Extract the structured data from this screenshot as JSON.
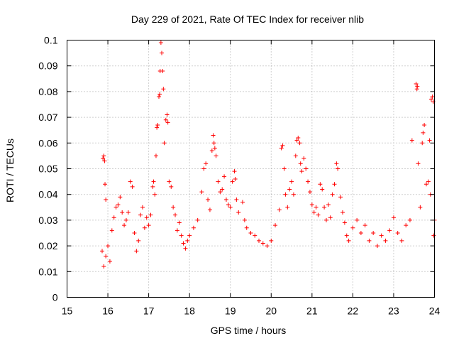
{
  "chart_data": {
    "type": "scatter",
    "title": "Day 229 of 2021, Rate Of TEC Index for receiver nlib",
    "xlabel": "GPS time / hours",
    "ylabel": "ROTI / TECUs",
    "xlim": [
      15,
      24
    ],
    "ylim": [
      0,
      0.1
    ],
    "x_ticks": [
      15,
      16,
      17,
      18,
      19,
      20,
      21,
      22,
      23,
      24
    ],
    "x_tick_labels": [
      "15",
      "16",
      "17",
      "18",
      "19",
      "20",
      "21",
      "22",
      "23",
      "24"
    ],
    "y_ticks": [
      0,
      0.01,
      0.02,
      0.03,
      0.04,
      0.05,
      0.06,
      0.07,
      0.08,
      0.09,
      0.1
    ],
    "y_tick_labels": [
      "0",
      "0.01",
      "0.02",
      "0.03",
      "0.04",
      "0.05",
      "0.06",
      "0.07",
      "0.08",
      "0.09",
      "0.1"
    ],
    "grid": true,
    "marker": "plus",
    "color": "#ff0000",
    "series": [
      {
        "name": "ROTI",
        "points": [
          [
            15.88,
            0.054
          ],
          [
            15.9,
            0.055
          ],
          [
            15.92,
            0.053
          ],
          [
            15.93,
            0.044
          ],
          [
            15.95,
            0.038
          ],
          [
            15.86,
            0.018
          ],
          [
            15.9,
            0.012
          ],
          [
            15.95,
            0.016
          ],
          [
            16.0,
            0.02
          ],
          [
            16.05,
            0.014
          ],
          [
            16.1,
            0.026
          ],
          [
            16.15,
            0.031
          ],
          [
            16.2,
            0.035
          ],
          [
            16.25,
            0.036
          ],
          [
            16.3,
            0.039
          ],
          [
            16.35,
            0.033
          ],
          [
            16.4,
            0.028
          ],
          [
            16.45,
            0.03
          ],
          [
            16.5,
            0.033
          ],
          [
            16.55,
            0.045
          ],
          [
            16.6,
            0.043
          ],
          [
            16.65,
            0.025
          ],
          [
            16.7,
            0.018
          ],
          [
            16.75,
            0.022
          ],
          [
            16.8,
            0.032
          ],
          [
            16.85,
            0.035
          ],
          [
            16.9,
            0.027
          ],
          [
            16.95,
            0.031
          ],
          [
            17.0,
            0.028
          ],
          [
            17.05,
            0.032
          ],
          [
            17.1,
            0.043
          ],
          [
            17.12,
            0.045
          ],
          [
            17.15,
            0.04
          ],
          [
            17.18,
            0.055
          ],
          [
            17.2,
            0.066
          ],
          [
            17.22,
            0.067
          ],
          [
            17.25,
            0.078
          ],
          [
            17.27,
            0.079
          ],
          [
            17.28,
            0.088
          ],
          [
            17.3,
            0.099
          ],
          [
            17.32,
            0.095
          ],
          [
            17.34,
            0.088
          ],
          [
            17.36,
            0.081
          ],
          [
            17.38,
            0.06
          ],
          [
            17.42,
            0.069
          ],
          [
            17.45,
            0.071
          ],
          [
            17.47,
            0.068
          ],
          [
            17.5,
            0.045
          ],
          [
            17.55,
            0.043
          ],
          [
            17.6,
            0.035
          ],
          [
            17.65,
            0.032
          ],
          [
            17.7,
            0.026
          ],
          [
            17.75,
            0.029
          ],
          [
            17.8,
            0.024
          ],
          [
            17.85,
            0.021
          ],
          [
            17.9,
            0.019
          ],
          [
            17.95,
            0.022
          ],
          [
            18.0,
            0.024
          ],
          [
            18.1,
            0.027
          ],
          [
            18.2,
            0.03
          ],
          [
            18.3,
            0.041
          ],
          [
            18.35,
            0.05
          ],
          [
            18.4,
            0.052
          ],
          [
            18.45,
            0.038
          ],
          [
            18.5,
            0.034
          ],
          [
            18.55,
            0.057
          ],
          [
            18.58,
            0.063
          ],
          [
            18.6,
            0.06
          ],
          [
            18.62,
            0.058
          ],
          [
            18.65,
            0.055
          ],
          [
            18.7,
            0.045
          ],
          [
            18.75,
            0.041
          ],
          [
            18.8,
            0.042
          ],
          [
            18.85,
            0.047
          ],
          [
            18.9,
            0.038
          ],
          [
            18.95,
            0.036
          ],
          [
            19.0,
            0.035
          ],
          [
            19.05,
            0.045
          ],
          [
            19.1,
            0.049
          ],
          [
            19.12,
            0.046
          ],
          [
            19.15,
            0.038
          ],
          [
            19.2,
            0.033
          ],
          [
            19.3,
            0.037
          ],
          [
            19.35,
            0.03
          ],
          [
            19.4,
            0.027
          ],
          [
            19.5,
            0.025
          ],
          [
            19.6,
            0.024
          ],
          [
            19.7,
            0.022
          ],
          [
            19.8,
            0.021
          ],
          [
            19.9,
            0.02
          ],
          [
            20.0,
            0.022
          ],
          [
            20.1,
            0.028
          ],
          [
            20.2,
            0.034
          ],
          [
            20.25,
            0.058
          ],
          [
            20.28,
            0.059
          ],
          [
            20.32,
            0.05
          ],
          [
            20.35,
            0.04
          ],
          [
            20.4,
            0.035
          ],
          [
            20.45,
            0.042
          ],
          [
            20.5,
            0.045
          ],
          [
            20.55,
            0.04
          ],
          [
            20.6,
            0.055
          ],
          [
            20.63,
            0.061
          ],
          [
            20.66,
            0.062
          ],
          [
            20.7,
            0.06
          ],
          [
            20.72,
            0.052
          ],
          [
            20.75,
            0.049
          ],
          [
            20.8,
            0.054
          ],
          [
            20.85,
            0.05
          ],
          [
            20.9,
            0.045
          ],
          [
            20.95,
            0.041
          ],
          [
            21.0,
            0.036
          ],
          [
            21.05,
            0.033
          ],
          [
            21.1,
            0.035
          ],
          [
            21.15,
            0.032
          ],
          [
            21.2,
            0.044
          ],
          [
            21.25,
            0.042
          ],
          [
            21.3,
            0.035
          ],
          [
            21.35,
            0.03
          ],
          [
            21.4,
            0.036
          ],
          [
            21.45,
            0.031
          ],
          [
            21.5,
            0.04
          ],
          [
            21.55,
            0.044
          ],
          [
            21.6,
            0.052
          ],
          [
            21.63,
            0.05
          ],
          [
            21.7,
            0.039
          ],
          [
            21.75,
            0.033
          ],
          [
            21.8,
            0.029
          ],
          [
            21.85,
            0.024
          ],
          [
            21.9,
            0.022
          ],
          [
            22.0,
            0.027
          ],
          [
            22.1,
            0.03
          ],
          [
            22.2,
            0.025
          ],
          [
            22.3,
            0.028
          ],
          [
            22.4,
            0.022
          ],
          [
            22.5,
            0.025
          ],
          [
            22.6,
            0.02
          ],
          [
            22.7,
            0.024
          ],
          [
            22.8,
            0.022
          ],
          [
            22.9,
            0.026
          ],
          [
            23.0,
            0.031
          ],
          [
            23.1,
            0.025
          ],
          [
            23.2,
            0.022
          ],
          [
            23.3,
            0.028
          ],
          [
            23.4,
            0.03
          ],
          [
            23.45,
            0.061
          ],
          [
            23.55,
            0.083
          ],
          [
            23.57,
            0.081
          ],
          [
            23.58,
            0.082
          ],
          [
            23.6,
            0.052
          ],
          [
            23.65,
            0.035
          ],
          [
            23.7,
            0.06
          ],
          [
            23.72,
            0.064
          ],
          [
            23.75,
            0.067
          ],
          [
            23.8,
            0.044
          ],
          [
            23.85,
            0.045
          ],
          [
            23.88,
            0.061
          ],
          [
            23.9,
            0.04
          ],
          [
            23.92,
            0.077
          ],
          [
            23.95,
            0.078
          ],
          [
            23.97,
            0.076
          ],
          [
            23.98,
            0.024
          ],
          [
            24.0,
            0.03
          ]
        ]
      }
    ]
  }
}
